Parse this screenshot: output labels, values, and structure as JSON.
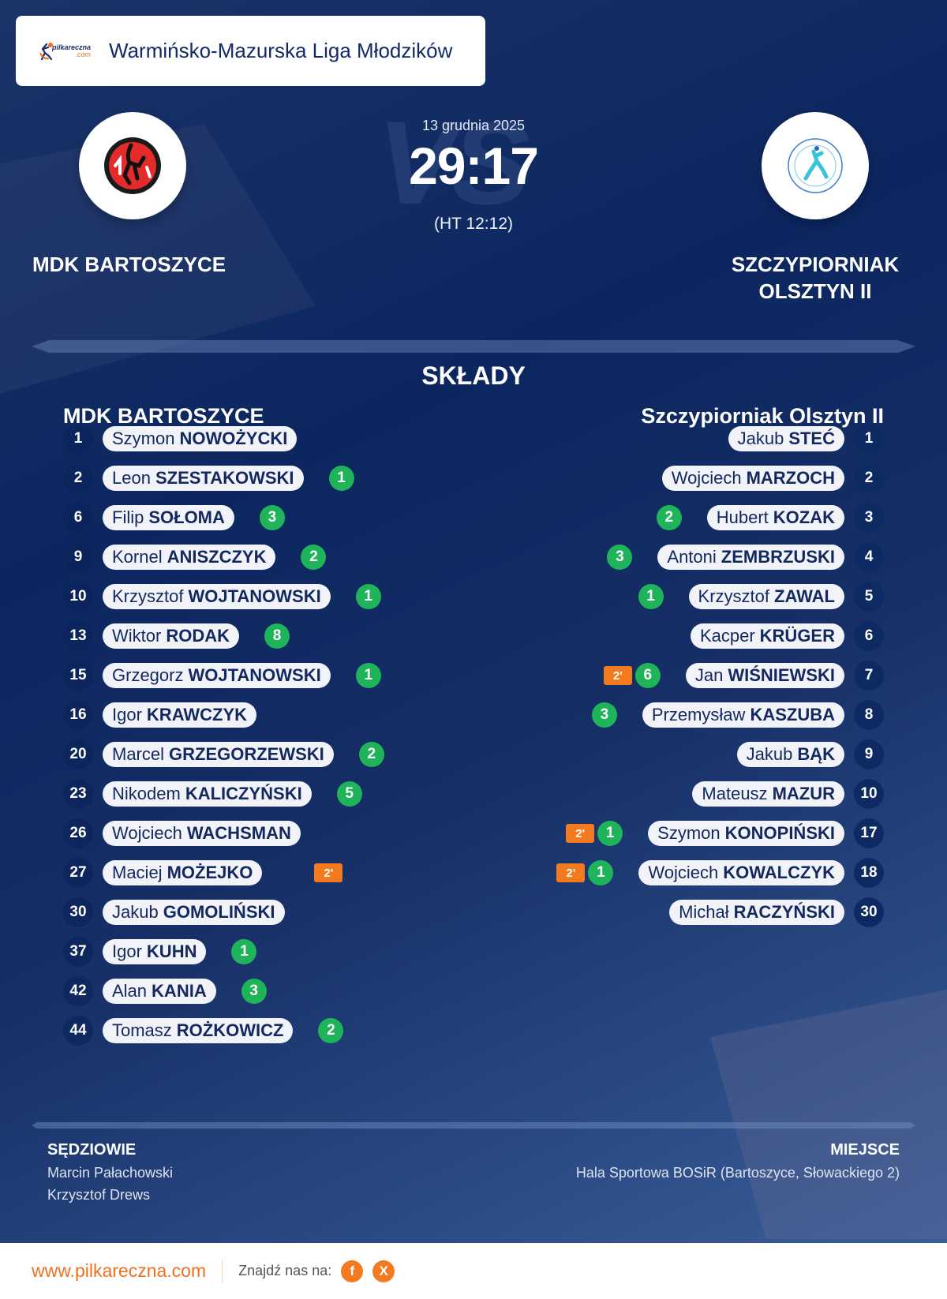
{
  "header": {
    "brand": {
      "name": "pilkareczna",
      "suffix": ".com"
    },
    "league": "Warmińsko-Mazurska Liga Młodzików"
  },
  "match": {
    "date": "13 grudnia 2025",
    "score": "29:17",
    "halftime": "(HT 12:12)",
    "watermark": "VS",
    "home": {
      "name": "MDK BARTOSZYCE",
      "logo": "mdk-bartoszyce-crest"
    },
    "away": {
      "name_line1": "SZCZYPIORNIAK",
      "name_line2": "OLSZTYN II",
      "logo": "ks-szczypiorniak-olsztyn-crest"
    }
  },
  "lineups": {
    "title": "SKŁADY",
    "home": {
      "title": "MDK BARTOSZYCE",
      "players": [
        {
          "number": "1",
          "first": "Szymon",
          "last": "NOWOŻYCKI",
          "goals": "",
          "penalty": ""
        },
        {
          "number": "2",
          "first": "Leon",
          "last": "SZESTAKOWSKI",
          "goals": "1",
          "penalty": ""
        },
        {
          "number": "6",
          "first": "Filip",
          "last": "SOŁOMA",
          "goals": "3",
          "penalty": ""
        },
        {
          "number": "9",
          "first": "Kornel",
          "last": "ANISZCZYK",
          "goals": "2",
          "penalty": ""
        },
        {
          "number": "10",
          "first": "Krzysztof",
          "last": "WOJTANOWSKI",
          "goals": "1",
          "penalty": ""
        },
        {
          "number": "13",
          "first": "Wiktor",
          "last": "RODAK",
          "goals": "8",
          "penalty": ""
        },
        {
          "number": "15",
          "first": "Grzegorz",
          "last": "WOJTANOWSKI",
          "goals": "1",
          "penalty": ""
        },
        {
          "number": "16",
          "first": "Igor",
          "last": "KRAWCZYK",
          "goals": "",
          "penalty": ""
        },
        {
          "number": "20",
          "first": "Marcel",
          "last": "GRZEGORZEWSKI",
          "goals": "2",
          "penalty": ""
        },
        {
          "number": "23",
          "first": "Nikodem",
          "last": "KALICZYŃSKI",
          "goals": "5",
          "penalty": ""
        },
        {
          "number": "26",
          "first": "Wojciech",
          "last": "WACHSMAN",
          "goals": "",
          "penalty": ""
        },
        {
          "number": "27",
          "first": "Maciej",
          "last": "MOŻEJKO",
          "goals": "",
          "penalty": "2'"
        },
        {
          "number": "30",
          "first": "Jakub",
          "last": "GOMOLIŃSKI",
          "goals": "",
          "penalty": ""
        },
        {
          "number": "37",
          "first": "Igor",
          "last": "KUHN",
          "goals": "1",
          "penalty": ""
        },
        {
          "number": "42",
          "first": "Alan",
          "last": "KANIA",
          "goals": "3",
          "penalty": ""
        },
        {
          "number": "44",
          "first": "Tomasz",
          "last": "ROŻKOWICZ",
          "goals": "2",
          "penalty": ""
        }
      ]
    },
    "away": {
      "title": "Szczypiorniak Olsztyn II",
      "players": [
        {
          "number": "1",
          "first": "Jakub",
          "last": "STEĆ",
          "goals": "",
          "penalty": ""
        },
        {
          "number": "2",
          "first": "Wojciech",
          "last": "MARZOCH",
          "goals": "",
          "penalty": ""
        },
        {
          "number": "3",
          "first": "Hubert",
          "last": "KOZAK",
          "goals": "2",
          "penalty": ""
        },
        {
          "number": "4",
          "first": "Antoni",
          "last": "ZEMBRZUSKI",
          "goals": "3",
          "penalty": ""
        },
        {
          "number": "5",
          "first": "Krzysztof",
          "last": "ZAWAL",
          "goals": "1",
          "penalty": ""
        },
        {
          "number": "6",
          "first": "Kacper",
          "last": "KRÜGER",
          "goals": "",
          "penalty": ""
        },
        {
          "number": "7",
          "first": "Jan",
          "last": "WIŚNIEWSKI",
          "goals": "6",
          "penalty": "2'"
        },
        {
          "number": "8",
          "first": "Przemysław",
          "last": "KASZUBA",
          "goals": "3",
          "penalty": ""
        },
        {
          "number": "9",
          "first": "Jakub",
          "last": "BĄK",
          "goals": "",
          "penalty": ""
        },
        {
          "number": "10",
          "first": "Mateusz",
          "last": "MAZUR",
          "goals": "",
          "penalty": ""
        },
        {
          "number": "17",
          "first": "Szymon",
          "last": "KONOPIŃSKI",
          "goals": "1",
          "penalty": "2'"
        },
        {
          "number": "18",
          "first": "Wojciech",
          "last": "KOWALCZYK",
          "goals": "1",
          "penalty": "2'"
        },
        {
          "number": "30",
          "first": "Michał",
          "last": "RACZYŃSKI",
          "goals": "",
          "penalty": ""
        }
      ]
    }
  },
  "officials": {
    "referees_label": "SĘDZIOWIE",
    "referees": [
      "Marcin Pałachowski",
      "Krzysztof Drews"
    ],
    "venue_label": "MIEJSCE",
    "venue": "Hala Sportowa BOSiR (Bartoszyce, Słowackiego 2)"
  },
  "footer": {
    "url": "www.pilkareczna.com",
    "find_us": "Znajdź nas na:",
    "social": [
      {
        "icon": "facebook-icon",
        "glyph": "f"
      },
      {
        "icon": "x-icon",
        "glyph": "X"
      }
    ]
  },
  "colors": {
    "navy": "#0c2660",
    "pill_bg": "#f1f3f8",
    "pill_text": "#12285f",
    "goal_green": "#1fb45a",
    "penalty_orange": "#f47a1f",
    "brand_orange": "#f07020"
  }
}
